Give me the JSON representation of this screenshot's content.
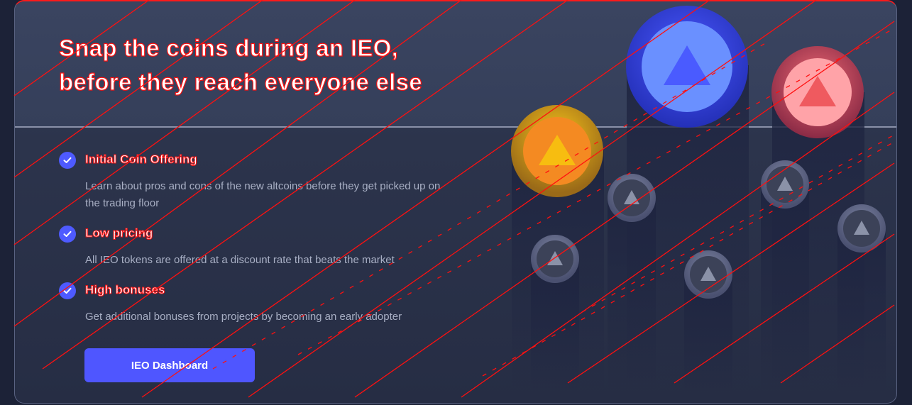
{
  "promo": {
    "headline_line1": "Snap the coins during an IEO,",
    "headline_line2": "before they reach everyone else"
  },
  "features": [
    {
      "title": "Initial Coin Offering",
      "description": "Learn about pros and cons of the new altcoins before they get picked up on the trading floor"
    },
    {
      "title": "Low pricing",
      "description": "All IEO tokens are offered at a discount rate that beats the market"
    },
    {
      "title": "High bonuses",
      "description": "Get additional bonuses from projects by becoming an early adopter"
    }
  ],
  "cta": {
    "label": "IEO Dashboard"
  },
  "colors": {
    "accent": "#4f56ff",
    "coin_blue": "#3b49e6",
    "coin_red": "#e05a65",
    "coin_orange": "#f39a1a",
    "coin_gray": "#5a6180",
    "overlay_lines": "#ff1010"
  },
  "icons": [
    "check-icon",
    "coin-triangle-icon"
  ]
}
